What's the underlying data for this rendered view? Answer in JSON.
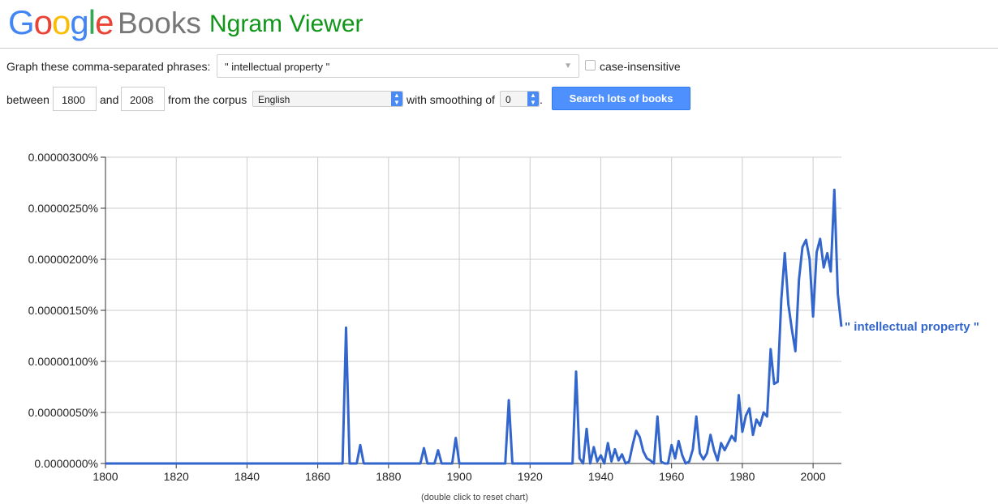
{
  "header": {
    "logo_letters": [
      {
        "ch": "G",
        "color": "#4285F4"
      },
      {
        "ch": "o",
        "color": "#EA4335"
      },
      {
        "ch": "o",
        "color": "#FBBC05"
      },
      {
        "ch": "g",
        "color": "#4285F4"
      },
      {
        "ch": "l",
        "color": "#34A853"
      },
      {
        "ch": "e",
        "color": "#EA4335"
      }
    ],
    "books": "Books",
    "title": "Ngram Viewer"
  },
  "form": {
    "phrases_label": "Graph these comma-separated phrases:",
    "phrases_value": "\" intellectual property \"",
    "case_label": "case-insensitive",
    "between_label": "between",
    "start_year": "1800",
    "and_label": "and",
    "end_year": "2008",
    "corpus_label": "from the corpus",
    "corpus_value": "English",
    "smoothing_label": "with smoothing of",
    "smoothing_value": "0",
    "period": ".",
    "search_button": "Search lots of books"
  },
  "reset_hint": "(double click to reset chart)",
  "chart_data": {
    "type": "line",
    "title": "",
    "xlabel": "",
    "ylabel": "",
    "xlim": [
      1800,
      2008
    ],
    "ylim": [
      0,
      3e-06
    ],
    "x_ticks": [
      1800,
      1820,
      1840,
      1860,
      1880,
      1900,
      1920,
      1940,
      1960,
      1980,
      2000
    ],
    "y_ticks": [
      "0.0000000%",
      "0.00000050%",
      "0.00000100%",
      "0.00000150%",
      "0.00000200%",
      "0.00000250%",
      "0.00000300%"
    ],
    "grid": true,
    "color": "#3366CC",
    "series": [
      {
        "name": "\" intellectual property \"",
        "x": [
          1800,
          1866,
          1867,
          1868,
          1869,
          1871,
          1872,
          1873,
          1889,
          1890,
          1891,
          1893,
          1894,
          1895,
          1898,
          1899,
          1900,
          1913,
          1914,
          1915,
          1932,
          1933,
          1934,
          1935,
          1936,
          1937,
          1938,
          1939,
          1940,
          1941,
          1942,
          1943,
          1944,
          1945,
          1946,
          1947,
          1948,
          1949,
          1950,
          1951,
          1952,
          1953,
          1954,
          1955,
          1956,
          1957,
          1958,
          1959,
          1960,
          1961,
          1962,
          1963,
          1964,
          1965,
          1966,
          1967,
          1968,
          1969,
          1970,
          1971,
          1972,
          1973,
          1974,
          1975,
          1976,
          1977,
          1978,
          1979,
          1980,
          1981,
          1982,
          1983,
          1984,
          1985,
          1986,
          1987,
          1988,
          1989,
          1990,
          1991,
          1992,
          1993,
          1994,
          1995,
          1996,
          1997,
          1998,
          1999,
          2000,
          2001,
          2002,
          2003,
          2004,
          2005,
          2006,
          2007,
          2008
        ],
        "values": [
          0,
          0,
          0,
          1.33e-06,
          0,
          0,
          1.8e-07,
          0,
          0,
          1.5e-07,
          0,
          0,
          1.3e-07,
          0,
          0,
          2.5e-07,
          0,
          0,
          6.2e-07,
          0,
          0,
          9e-07,
          5e-08,
          0,
          3.4e-07,
          0,
          1.6e-07,
          2e-08,
          8e-08,
          0,
          2e-07,
          2e-08,
          1.4e-07,
          3e-08,
          9e-08,
          0,
          2e-08,
          1.8e-07,
          3.2e-07,
          2.6e-07,
          1.2e-07,
          5e-08,
          3e-08,
          0,
          4.6e-07,
          2e-08,
          0,
          0,
          1.8e-07,
          5e-08,
          2.2e-07,
          8e-08,
          0,
          2e-08,
          1.4e-07,
          4.6e-07,
          1e-07,
          4e-08,
          1e-07,
          2.8e-07,
          1.3e-07,
          3e-08,
          2e-07,
          1.3e-07,
          2e-07,
          2.7e-07,
          2.2e-07,
          6.7e-07,
          3.1e-07,
          4.7e-07,
          5.4e-07,
          2.8e-07,
          4.3e-07,
          3.7e-07,
          5e-07,
          4.6e-07,
          1.12e-06,
          7.8e-07,
          8e-07,
          1.6e-06,
          2.06e-06,
          1.56e-06,
          1.31e-06,
          1.1e-06,
          1.8e-06,
          2.12e-06,
          2.19e-06,
          2e-06,
          1.44e-06,
          2.07e-06,
          2.2e-06,
          1.92e-06,
          2.06e-06,
          1.88e-06,
          2.68e-06,
          1.66e-06,
          1.34e-06
        ]
      }
    ]
  }
}
